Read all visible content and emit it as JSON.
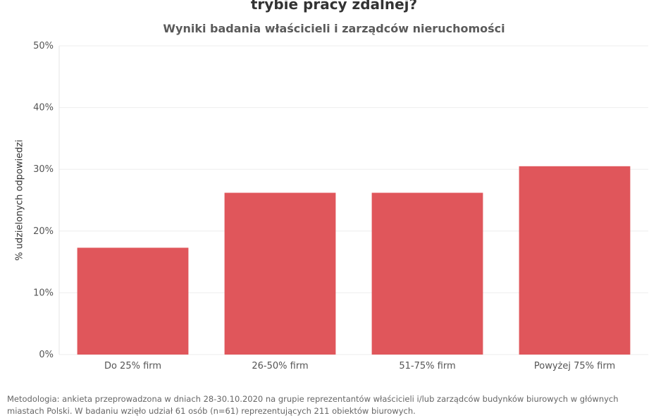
{
  "header": {
    "title": "trybie pracy zdalnej?",
    "subtitle": "Wyniki badania właścicieli i zarządców nieruchomości"
  },
  "chart_data": {
    "type": "bar",
    "title": "trybie pracy zdalnej?",
    "subtitle": "Wyniki badania właścicieli i zarządców nieruchomości",
    "xlabel": "",
    "ylabel": "% udzielonych odpowiedzi",
    "categories": [
      "Do 25% firm",
      "26-50% firm",
      "51-75% firm",
      "Powyżej 75% firm"
    ],
    "values": [
      17.3,
      26.2,
      26.2,
      30.5
    ],
    "unit": "%",
    "ylim": [
      0,
      50
    ],
    "yticks": [
      0,
      10,
      20,
      30,
      40,
      50
    ],
    "ytick_labels": [
      "0%",
      "10%",
      "20%",
      "30%",
      "40%",
      "50%"
    ],
    "grid": true,
    "bar_color": "#e0565b",
    "grid_color": "#eeeeee"
  },
  "footer": {
    "methodology_lead": "Metodologia:",
    "methodology_text": " ankieta przeprowadzona w dniach 28-30.10.2020 na grupie reprezentantów właścicieli i/lub zarządców budynków biurowych w głównych miastach Polski. W badaniu wzięło udział 61 osób (n=61) reprezentujących 211 obiektów biurowych."
  }
}
